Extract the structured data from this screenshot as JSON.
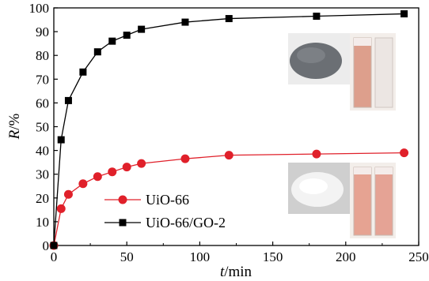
{
  "chart_data": {
    "type": "line",
    "xlabel_italic": "t",
    "xlabel_unit": "/min",
    "ylabel_italic": "R",
    "ylabel_unit": "/%",
    "xlim": [
      0,
      250
    ],
    "ylim": [
      0,
      100
    ],
    "xticks": [
      0,
      50,
      100,
      150,
      200,
      250
    ],
    "yticks": [
      0,
      10,
      20,
      30,
      40,
      50,
      60,
      70,
      80,
      90,
      100
    ],
    "grid": false,
    "legend_position": "bottom-left",
    "series": [
      {
        "name": "UiO-66",
        "color": "#e0202a",
        "marker": "circle",
        "x": [
          0,
          5,
          10,
          20,
          30,
          40,
          50,
          60,
          90,
          120,
          180,
          240
        ],
        "y": [
          0,
          15.5,
          21.5,
          26,
          29,
          31,
          33,
          34.5,
          36.5,
          38,
          38.5,
          39
        ]
      },
      {
        "name": "UiO-66/GO-2",
        "color": "#000000",
        "marker": "square",
        "x": [
          0,
          5,
          10,
          20,
          30,
          40,
          50,
          60,
          90,
          120,
          180,
          240
        ],
        "y": [
          0,
          44.5,
          61,
          73,
          81.5,
          86,
          88.5,
          91,
          94,
          95.5,
          96.5,
          97.5
        ]
      }
    ],
    "insets": [
      {
        "name": "gray-powder-photo",
        "powder_color": "#6a6e73",
        "vial_left_color": "#e0a590",
        "vial_right_color": "#e8e2de"
      },
      {
        "name": "white-powder-photo",
        "powder_color": "#f2f2f2",
        "vial_left_color": "#e8a594",
        "vial_right_color": "#e6a595"
      }
    ]
  }
}
